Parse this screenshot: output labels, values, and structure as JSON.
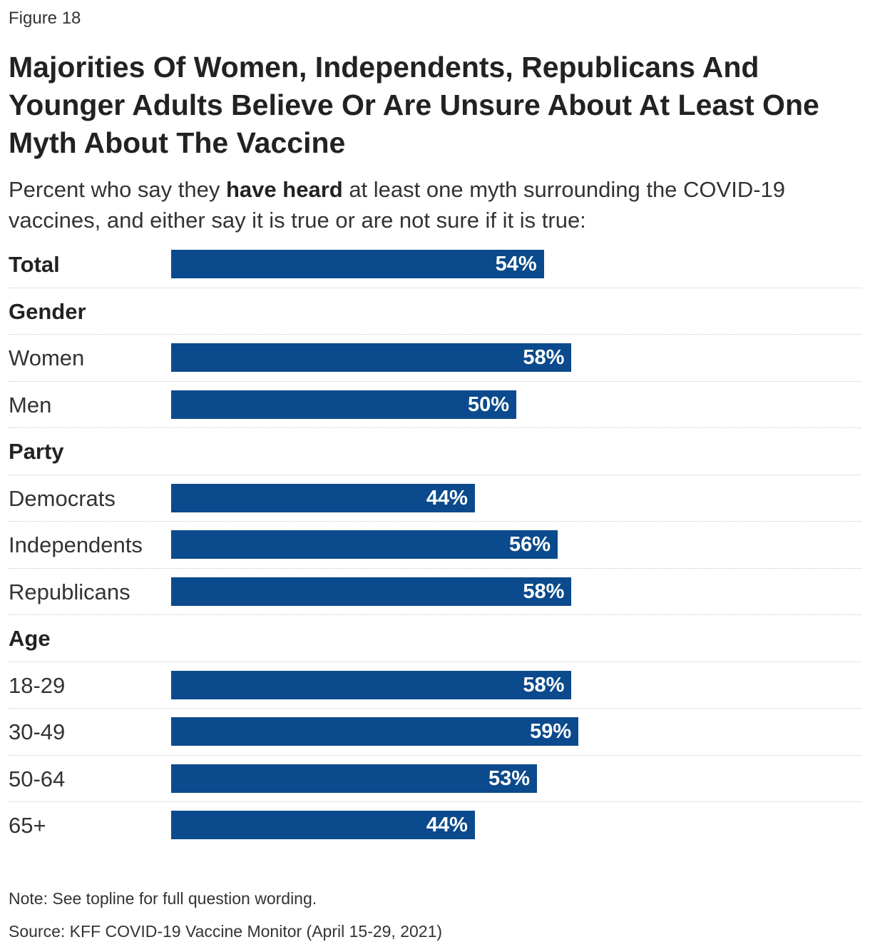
{
  "figure_label": "Figure 18",
  "title": "Majorities Of Women, Independents, Republicans And Younger Adults Believe Or Are Unsure About At Least One Myth About The Vaccine",
  "subtitle": {
    "before": "Percent who say they ",
    "bold": "have heard",
    "after": " at least one myth surrounding the COVID-19 vaccines, and either say it is true or are not sure if it is true:"
  },
  "colors": {
    "bar": "#0b4a8c",
    "bar_text": "#ffffff"
  },
  "chart_data": {
    "type": "bar",
    "orientation": "horizontal",
    "title": "Majorities Of Women, Independents, Republicans And Younger Adults Believe Or Are Unsure About At Least One Myth About The Vaccine",
    "xlim": [
      0,
      100
    ],
    "rows": [
      {
        "kind": "total",
        "label": "Total",
        "value": 54,
        "value_label": "54%"
      },
      {
        "kind": "heading",
        "label": "Gender"
      },
      {
        "kind": "item",
        "label": "Women",
        "value": 58,
        "value_label": "58%"
      },
      {
        "kind": "item",
        "label": "Men",
        "value": 50,
        "value_label": "50%"
      },
      {
        "kind": "heading",
        "label": "Party"
      },
      {
        "kind": "item",
        "label": "Democrats",
        "value": 44,
        "value_label": "44%"
      },
      {
        "kind": "item",
        "label": "Independents",
        "value": 56,
        "value_label": "56%"
      },
      {
        "kind": "item",
        "label": "Republicans",
        "value": 58,
        "value_label": "58%"
      },
      {
        "kind": "heading",
        "label": "Age"
      },
      {
        "kind": "item",
        "label": "18-29",
        "value": 58,
        "value_label": "58%"
      },
      {
        "kind": "item",
        "label": "30-49",
        "value": 59,
        "value_label": "59%"
      },
      {
        "kind": "item",
        "label": "50-64",
        "value": 53,
        "value_label": "53%"
      },
      {
        "kind": "item",
        "label": "65+",
        "value": 44,
        "value_label": "44%"
      }
    ]
  },
  "note": "Note: See topline for full question wording.",
  "source": "Source: KFF COVID-19 Vaccine Monitor (April 15-29, 2021)"
}
